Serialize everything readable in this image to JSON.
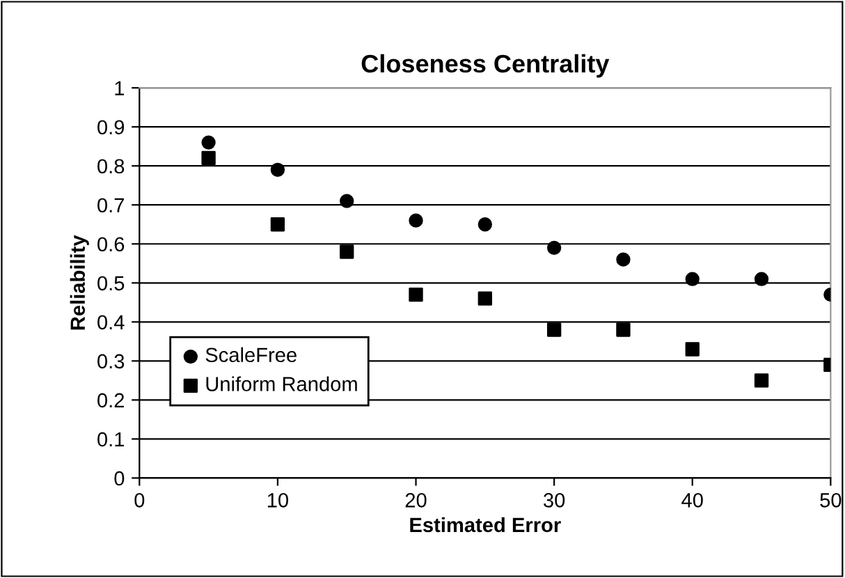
{
  "chart_data": {
    "type": "scatter",
    "title": "Closeness Centrality",
    "xlabel": "Estimated Error",
    "ylabel": "Reliability",
    "x": [
      5,
      10,
      15,
      20,
      25,
      30,
      35,
      40,
      45,
      50
    ],
    "series": [
      {
        "name": "ScaleFree",
        "color": "#000000",
        "marker": "circle",
        "values": [
          0.86,
          0.79,
          0.71,
          0.66,
          0.65,
          0.59,
          0.56,
          0.51,
          0.51,
          0.47
        ]
      },
      {
        "name": "Uniform Random",
        "color": "#000000",
        "marker": "square",
        "values": [
          0.82,
          0.65,
          0.58,
          0.47,
          0.46,
          0.38,
          0.38,
          0.33,
          0.25,
          0.29
        ]
      }
    ],
    "xlim": [
      0,
      50
    ],
    "xticks": [
      0,
      10,
      20,
      30,
      40,
      50
    ],
    "ylim": [
      0,
      1
    ],
    "yticks": [
      0,
      0.1,
      0.2,
      0.3,
      0.4,
      0.5,
      0.6,
      0.7,
      0.8,
      0.9,
      1
    ],
    "grid": "y",
    "legend": "bottom left"
  }
}
